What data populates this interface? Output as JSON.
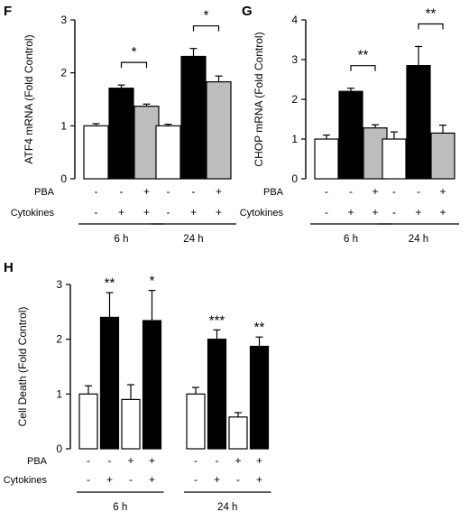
{
  "chart_data": [
    {
      "panel": "F",
      "type": "bar",
      "ylabel": "ATF4 mRNA (Fold Control)",
      "ylim": [
        0,
        3
      ],
      "yticks": [
        0,
        1,
        2,
        3
      ],
      "row_labels": [
        "PBA",
        "Cytokines"
      ],
      "groups": [
        {
          "label": "6 h",
          "bars": [
            {
              "value": 1.0,
              "err": 0.04,
              "color": "white",
              "pba": "-",
              "cytokines": "-"
            },
            {
              "value": 1.71,
              "err": 0.06,
              "color": "black",
              "pba": "-",
              "cytokines": "+"
            },
            {
              "value": 1.37,
              "err": 0.04,
              "color": "gray",
              "pba": "+",
              "cytokines": "+"
            }
          ],
          "significance": [
            {
              "from": 1,
              "to": 2,
              "label": "*"
            }
          ]
        },
        {
          "label": "24 h",
          "bars": [
            {
              "value": 1.0,
              "err": 0.03,
              "color": "white",
              "pba": "-",
              "cytokines": "-"
            },
            {
              "value": 2.31,
              "err": 0.15,
              "color": "black",
              "pba": "-",
              "cytokines": "+"
            },
            {
              "value": 1.83,
              "err": 0.11,
              "color": "gray",
              "pba": "+",
              "cytokines": "+"
            }
          ],
          "significance": [
            {
              "from": 1,
              "to": 2,
              "label": "*"
            }
          ]
        }
      ]
    },
    {
      "panel": "G",
      "type": "bar",
      "ylabel": "CHOP mRNA (Fold Control)",
      "ylim": [
        0,
        4
      ],
      "yticks": [
        0,
        1,
        2,
        3,
        4
      ],
      "row_labels": [
        "PBA",
        "Cytokines"
      ],
      "groups": [
        {
          "label": "6 h",
          "bars": [
            {
              "value": 1.0,
              "err": 0.1,
              "color": "white",
              "pba": "-",
              "cytokines": "-"
            },
            {
              "value": 2.2,
              "err": 0.08,
              "color": "black",
              "pba": "-",
              "cytokines": "+"
            },
            {
              "value": 1.28,
              "err": 0.08,
              "color": "gray",
              "pba": "+",
              "cytokines": "+"
            }
          ],
          "significance": [
            {
              "from": 1,
              "to": 2,
              "label": "**"
            }
          ]
        },
        {
          "label": "24 h",
          "bars": [
            {
              "value": 1.0,
              "err": 0.18,
              "color": "white",
              "pba": "-",
              "cytokines": "-"
            },
            {
              "value": 2.85,
              "err": 0.48,
              "color": "black",
              "pba": "-",
              "cytokines": "+"
            },
            {
              "value": 1.15,
              "err": 0.2,
              "color": "gray",
              "pba": "+",
              "cytokines": "+"
            }
          ],
          "significance": [
            {
              "from": 1,
              "to": 2,
              "label": "**"
            }
          ]
        }
      ]
    },
    {
      "panel": "H",
      "type": "bar",
      "ylabel": "Cell Death (Fold Control)",
      "ylim": [
        0,
        3
      ],
      "yticks": [
        0,
        1,
        2,
        3
      ],
      "row_labels": [
        "PBA",
        "Cytokines"
      ],
      "groups": [
        {
          "label": "6 h",
          "bars": [
            {
              "value": 1.0,
              "err": 0.15,
              "color": "white",
              "pba": "-",
              "cytokines": "-",
              "star": ""
            },
            {
              "value": 2.4,
              "err": 0.45,
              "color": "black",
              "pba": "-",
              "cytokines": "+",
              "star": "**"
            },
            {
              "value": 0.9,
              "err": 0.27,
              "color": "white",
              "pba": "+",
              "cytokines": "-",
              "star": ""
            },
            {
              "value": 2.34,
              "err": 0.55,
              "color": "black",
              "pba": "+",
              "cytokines": "+",
              "star": "*"
            }
          ]
        },
        {
          "label": "24 h",
          "bars": [
            {
              "value": 1.0,
              "err": 0.12,
              "color": "white",
              "pba": "-",
              "cytokines": "-",
              "star": ""
            },
            {
              "value": 2.0,
              "err": 0.17,
              "color": "black",
              "pba": "-",
              "cytokines": "+",
              "star": "***"
            },
            {
              "value": 0.58,
              "err": 0.08,
              "color": "white",
              "pba": "+",
              "cytokines": "-",
              "star": ""
            },
            {
              "value": 1.87,
              "err": 0.17,
              "color": "black",
              "pba": "+",
              "cytokines": "+",
              "star": "**"
            }
          ]
        }
      ]
    }
  ]
}
